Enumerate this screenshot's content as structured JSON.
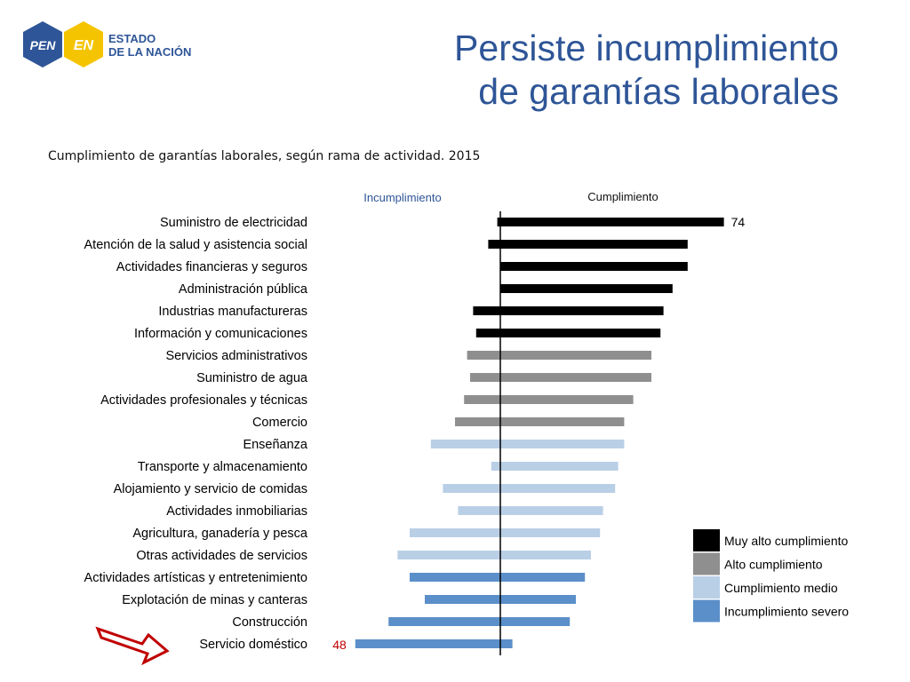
{
  "logo": {
    "badge1": "PEN",
    "badge2": "EN",
    "line1": "ESTADO",
    "line2": "DE LA NACIÓN"
  },
  "title": {
    "line1": "Persiste incumplimiento",
    "line2": "de garantías laborales"
  },
  "subtitle": "Cumplimiento de garantías laborales, según rama de actividad. 2015",
  "colors": {
    "Muy alto cumplimiento": "#000000",
    "Alto cumplimiento": "#8f8f8f",
    "Cumplimiento medio": "#b9cfe6",
    "Incumplimiento severo": "#5b8fc9",
    "label_highlight": "#c00000",
    "arrow": "#c00000",
    "title": "#2e5597"
  },
  "chart_data": {
    "type": "bar",
    "orientation": "horizontal-diverging",
    "header_left": "Incumplimiento",
    "header_right": "Cumplimiento",
    "categories": [
      "Suministro de electricidad",
      "Atención de la salud y asistencia social",
      "Actividades financieras y seguros",
      "Administración pública",
      "Industrias manufactureras",
      "Información y comunicaciones",
      "Servicios administrativos",
      "Suministro de agua",
      "Actividades profesionales y técnicas",
      "Comercio",
      "Enseñanza",
      "Transporte y almacenamiento",
      "Alojamiento y servicio de comidas",
      "Actividades inmobiliarias",
      "Agricultura, ganadería y pesca",
      "Otras actividades de servicios",
      "Actividades artísticas y entretenimiento",
      "Explotación de minas y canteras",
      "Construcción",
      "Servicio doméstico"
    ],
    "series": [
      {
        "name": "Incumplimiento",
        "values": [
          1,
          4,
          0,
          0,
          9,
          8,
          11,
          10,
          12,
          15,
          23,
          3,
          19,
          14,
          30,
          34,
          30,
          25,
          37,
          48
        ]
      },
      {
        "name": "Cumplimiento",
        "values": [
          74,
          62,
          62,
          57,
          54,
          53,
          50,
          50,
          44,
          41,
          41,
          39,
          38,
          34,
          33,
          30,
          28,
          25,
          23,
          4
        ]
      }
    ],
    "groups": [
      "Muy alto cumplimiento",
      "Muy alto cumplimiento",
      "Muy alto cumplimiento",
      "Muy alto cumplimiento",
      "Muy alto cumplimiento",
      "Muy alto cumplimiento",
      "Alto cumplimiento",
      "Alto cumplimiento",
      "Alto cumplimiento",
      "Alto cumplimiento",
      "Cumplimiento medio",
      "Cumplimiento medio",
      "Cumplimiento medio",
      "Cumplimiento medio",
      "Cumplimiento medio",
      "Cumplimiento medio",
      "Incumplimiento severo",
      "Incumplimiento severo",
      "Incumplimiento severo",
      "Incumplimiento severo"
    ],
    "data_labels": [
      {
        "category": "Suministro de electricidad",
        "value": "74",
        "side": "right"
      },
      {
        "category": "Servicio doméstico",
        "value": "48",
        "side": "left"
      }
    ],
    "legend": {
      "placement": "bottom-right",
      "items": [
        "Muy alto cumplimiento",
        "Alto cumplimiento",
        "Cumplimiento medio",
        "Incumplimiento severo"
      ]
    }
  }
}
